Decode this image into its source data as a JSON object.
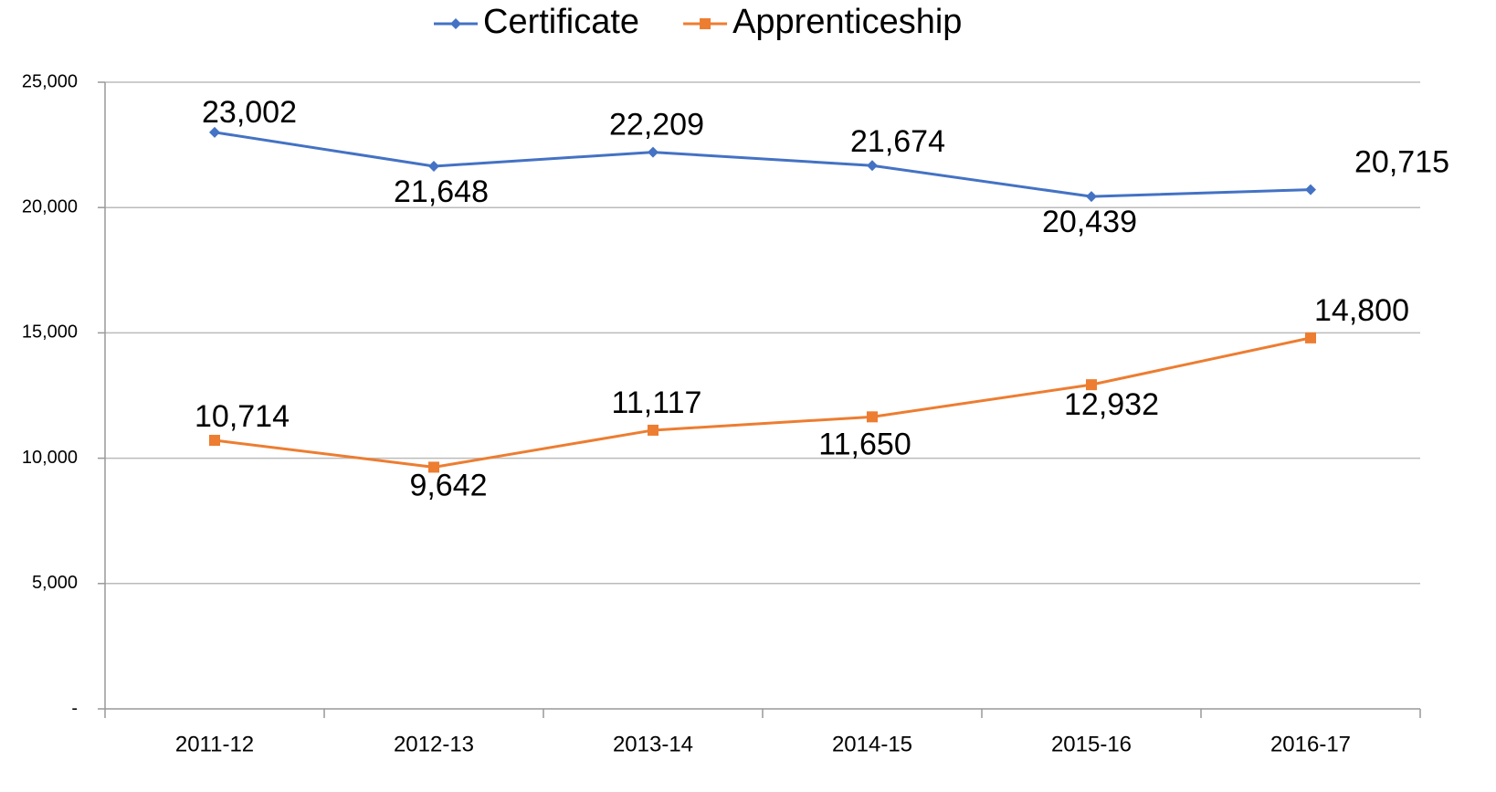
{
  "chart_data": {
    "type": "line",
    "categories": [
      "2011-12",
      "2012-13",
      "2013-14",
      "2014-15",
      "2015-16",
      "2016-17"
    ],
    "series": [
      {
        "name": "Certificate",
        "color": "#4472c4",
        "marker": "diamond",
        "values": [
          23002,
          21648,
          22209,
          21674,
          20439,
          20715
        ],
        "value_labels": [
          "23,002",
          "21,648",
          "22,209",
          "21,674",
          "20,439",
          "20,715"
        ]
      },
      {
        "name": "Apprenticeship",
        "color": "#ed7d31",
        "marker": "square",
        "values": [
          10714,
          9642,
          11117,
          11650,
          12932,
          14800
        ],
        "value_labels": [
          "10,714",
          "9,642",
          "11,117",
          "11,650",
          "12,932",
          "14,800"
        ]
      }
    ],
    "ylim": [
      0,
      25000
    ],
    "yticks": [
      {
        "value": 0,
        "label": "-"
      },
      {
        "value": 5000,
        "label": "5,000"
      },
      {
        "value": 10000,
        "label": "10,000"
      },
      {
        "value": 15000,
        "label": "15,000"
      },
      {
        "value": 20000,
        "label": "20,000"
      },
      {
        "value": 25000,
        "label": "25,000"
      }
    ],
    "grid": true,
    "legend": "top"
  }
}
